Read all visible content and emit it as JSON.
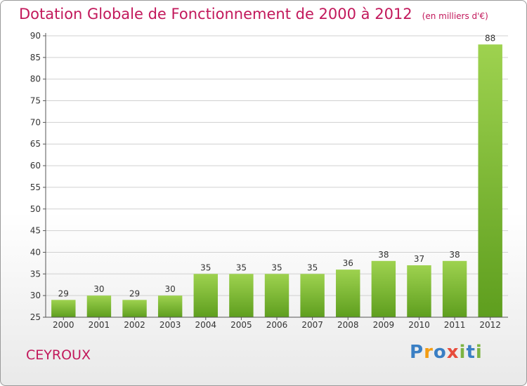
{
  "header": {
    "title": "Dotation Globale de Fonctionnement de 2000 à 2012",
    "unit": "(en milliers d'€)"
  },
  "place_name": "CEYROUX",
  "logo": {
    "text": "Proxiti",
    "letters": [
      {
        "ch": "P",
        "color": "#3a7fc4"
      },
      {
        "ch": "r",
        "color": "#f39c12"
      },
      {
        "ch": "o",
        "color": "#3a7fc4"
      },
      {
        "ch": "x",
        "color": "#e74c3c"
      },
      {
        "ch": "i",
        "color": "#7cb342"
      },
      {
        "ch": "t",
        "color": "#3a7fc4"
      },
      {
        "ch": "i",
        "color": "#7cb342"
      }
    ]
  },
  "colors": {
    "bar_top": "#9ed24f",
    "bar_bottom": "#5e9e1e",
    "axis": "#555555",
    "grid": "#d0d0d0"
  },
  "chart_data": {
    "type": "bar",
    "title": "Dotation Globale de Fonctionnement de 2000 à 2012",
    "subtitle": "(en milliers d'€)",
    "categories": [
      "2000",
      "2001",
      "2002",
      "2003",
      "2004",
      "2005",
      "2006",
      "2007",
      "2008",
      "2009",
      "2010",
      "2011",
      "2012"
    ],
    "values": [
      29,
      30,
      29,
      30,
      35,
      35,
      35,
      35,
      36,
      38,
      37,
      38,
      88
    ],
    "ylim": [
      25,
      90
    ],
    "yticks": [
      25,
      30,
      35,
      40,
      45,
      50,
      55,
      60,
      65,
      70,
      75,
      80,
      85,
      90
    ],
    "grid": "horizontal",
    "legend": "none"
  }
}
